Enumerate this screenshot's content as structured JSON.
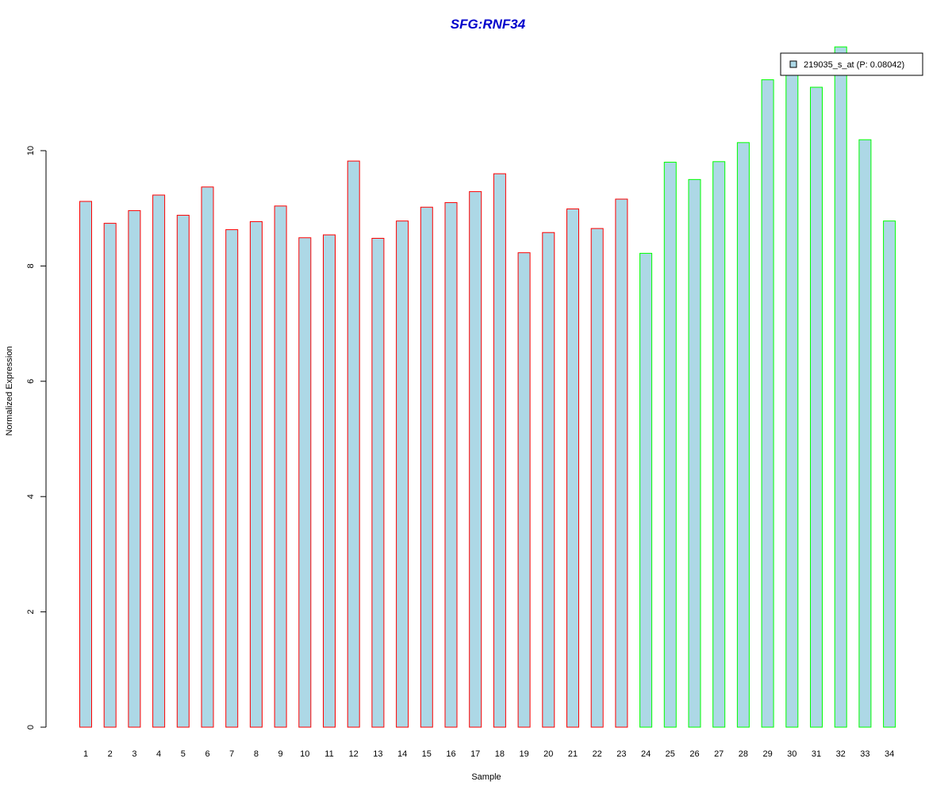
{
  "chart_data": {
    "type": "bar",
    "title": "SFG:RNF34",
    "xlabel": "Sample",
    "ylabel": "Normalized Expression",
    "categories": [
      "1",
      "2",
      "3",
      "4",
      "5",
      "6",
      "7",
      "8",
      "9",
      "10",
      "11",
      "12",
      "13",
      "14",
      "15",
      "16",
      "17",
      "18",
      "19",
      "20",
      "21",
      "22",
      "23",
      "24",
      "25",
      "26",
      "27",
      "28",
      "29",
      "30",
      "31",
      "32",
      "33",
      "34"
    ],
    "series": [
      {
        "name": "219035_s_at (P: 0.08042)",
        "values": [
          9.12,
          8.74,
          8.96,
          9.23,
          8.88,
          9.37,
          8.63,
          8.77,
          9.04,
          8.49,
          8.54,
          9.82,
          8.48,
          8.78,
          9.02,
          9.1,
          9.29,
          9.6,
          8.23,
          8.58,
          8.99,
          8.65,
          9.16,
          8.22,
          9.8,
          9.5,
          9.81,
          10.14,
          11.23,
          11.4,
          11.1,
          11.8,
          10.19,
          8.78
        ]
      }
    ],
    "group_of_sample": [
      "red",
      "red",
      "red",
      "red",
      "red",
      "red",
      "red",
      "red",
      "red",
      "red",
      "red",
      "red",
      "red",
      "red",
      "red",
      "red",
      "red",
      "red",
      "red",
      "red",
      "red",
      "red",
      "red",
      "green",
      "green",
      "green",
      "green",
      "green",
      "green",
      "green",
      "green",
      "green",
      "green",
      "green"
    ],
    "yticks": [
      0,
      2,
      4,
      6,
      8,
      10
    ],
    "ylim": [
      0,
      11.8
    ],
    "grid": false,
    "legend_position": "top-right",
    "colors": {
      "bar_fill": "#add8e6",
      "group_red_border": "#ff0000",
      "group_green_border": "#00ff00",
      "title": "#0000cc",
      "axis": "#000000"
    }
  }
}
